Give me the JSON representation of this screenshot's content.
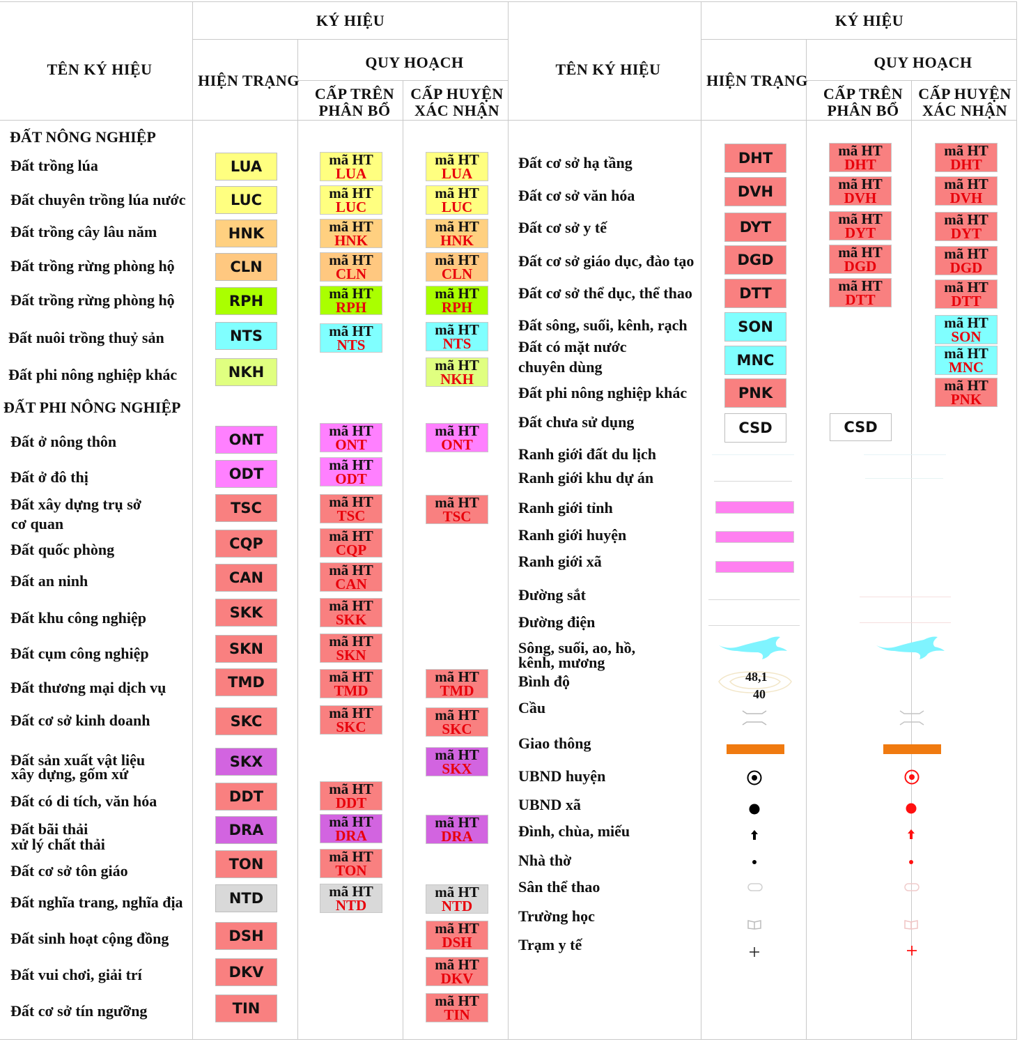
{
  "colors": {
    "LUA": "#ffff80",
    "LUC": "#ffff80",
    "HNK": "#ffd080",
    "CLN": "#ffc880",
    "RPH": "#aaff00",
    "NTS": "#80ffff",
    "NKH": "#e0ff80",
    "ONT": "#ff80ff",
    "ODT": "#ff80ff",
    "TSC": "#f98080",
    "CQP": "#f98080",
    "CAN": "#f98080",
    "SKK": "#f98080",
    "SKN": "#f98080",
    "TMD": "#f98080",
    "SKC": "#f98080",
    "SKX": "#d264e0",
    "DDT": "#f98080",
    "DRA": "#d264e0",
    "TON": "#f98080",
    "NTD": "#d9d9d9",
    "DSH": "#f98080",
    "DKV": "#f98080",
    "TIN": "#f98080",
    "DHT": "#f98080",
    "DVH": "#f98080",
    "DYT": "#f98080",
    "DGD": "#f98080",
    "DTT": "#f98080",
    "SON": "#80ffff",
    "MNC": "#80ffff",
    "PNK": "#f98080",
    "CSD": "#ffffff",
    "pink_bar": "#ff80f0",
    "river": "#7ff4ff",
    "road": "#f07a10",
    "red_symbol": "#ff1010"
  },
  "header": {
    "ten_ky_hieu": "TÊN KÝ HIỆU",
    "ky_hieu": "KÝ HIỆU",
    "hien_trang": "HIỆN TRẠNG",
    "quy_hoach": "QUY HOẠCH",
    "cap_tren_1": "CẤP TRÊN",
    "cap_tren_2": "PHÂN BỔ",
    "cap_huyen_1": "CẤP HUYỆN",
    "cap_huyen_2": "XÁC NHẬN"
  },
  "qbox_prefix": "mã HT",
  "left": {
    "section_nn": "ĐẤT NÔNG NGHIỆP",
    "section_pnn": "ĐẤT PHI NÔNG NGHIỆP",
    "rows": [
      {
        "l1": "Đất trồng lúa",
        "l2": "",
        "code": "LUA"
      },
      {
        "l1": "Đất chuyên trồng lúa nước",
        "l2": "",
        "code": "LUC"
      },
      {
        "l1": "Đất trồng cây lâu năm",
        "l2": "",
        "code": "HNK"
      },
      {
        "l1": "Đất trồng rừng phòng hộ",
        "l2": "",
        "code": "CLN"
      },
      {
        "l1": "Đất trồng rừng phòng hộ",
        "l2": "",
        "code": "RPH"
      },
      {
        "l1": "Đất nuôi trồng thuỷ sản",
        "l2": "",
        "code": "NTS"
      },
      {
        "l1": "Đất phi nông nghiệp khác",
        "l2": "",
        "code": "NKH"
      },
      {
        "l1": "Đất ở nông thôn",
        "l2": "",
        "code": "ONT"
      },
      {
        "l1": "Đất ở đô thị",
        "l2": "",
        "code": "ODT"
      },
      {
        "l1": "Đất xây dựng trụ sở",
        "l2": "cơ quan",
        "code": "TSC"
      },
      {
        "l1": "Đất quốc phòng",
        "l2": "",
        "code": "CQP"
      },
      {
        "l1": "Đất an ninh",
        "l2": "",
        "code": "CAN"
      },
      {
        "l1": "Đất khu công nghiệp",
        "l2": "",
        "code": "SKK"
      },
      {
        "l1": "Đất cụm công nghiệp",
        "l2": "",
        "code": "SKN"
      },
      {
        "l1": "Đất thương mại dịch vụ",
        "l2": "",
        "code": "TMD"
      },
      {
        "l1": "Đất cơ sở kinh doanh",
        "l2": "",
        "code": "SKC"
      },
      {
        "l1": "Đất sản xuất vật liệu",
        "l2": "xây dựng, gốm xứ",
        "code": "SKX"
      },
      {
        "l1": "Đất có di tích, văn hóa",
        "l2": "",
        "code": "DDT"
      },
      {
        "l1": "Đất bãi thải",
        "l2": "xử lý chất thải",
        "code": "DRA"
      },
      {
        "l1": "Đất cơ sở tôn giáo",
        "l2": "",
        "code": "TON"
      },
      {
        "l1": "Đất nghĩa trang, nghĩa địa",
        "l2": "",
        "code": "NTD"
      },
      {
        "l1": "Đất sinh hoạt cộng đồng",
        "l2": "",
        "code": "DSH"
      },
      {
        "l1": "Đất vui chơi, giải trí",
        "l2": "",
        "code": "DKV"
      },
      {
        "l1": "Đất cơ sở tín ngưỡng",
        "l2": "",
        "code": "TIN"
      }
    ]
  },
  "right": {
    "rows": [
      {
        "l1": "Đất cơ sở hạ tầng",
        "l2": "",
        "code": "DHT"
      },
      {
        "l1": "Đất cơ sở văn hóa",
        "l2": "",
        "code": "DVH"
      },
      {
        "l1": "Đất cơ sở y tế",
        "l2": "",
        "code": "DYT"
      },
      {
        "l1": "Đất cơ sở giáo dục, đào tạo",
        "l2": "",
        "code": "DGD"
      },
      {
        "l1": "Đất cơ sở thể dục, thể thao",
        "l2": "",
        "code": "DTT"
      },
      {
        "l1": "Đất sông, suối, kênh, rạch",
        "l2": "",
        "code": "SON"
      },
      {
        "l1": "Đất có mặt nước",
        "l2": "chuyên dùng",
        "code": "MNC"
      },
      {
        "l1": "Đất phi nông nghiệp khác",
        "l2": "",
        "code": "PNK"
      },
      {
        "l1": "Đất chưa sử dụng",
        "l2": "",
        "code": "CSD"
      }
    ],
    "lines": [
      "Ranh giới đất du lịch",
      "Ranh giới khu dự án",
      "Ranh giới tỉnh",
      "Ranh giới huyện",
      "Ranh giới xã",
      "Đường sắt",
      "Đường điện"
    ],
    "river_label_1": "Sông, suối, ao, hồ,",
    "river_label_2": "kênh, mương",
    "binh_do": "Bình độ",
    "binh_do_val_1": "48,1",
    "binh_do_val_2": "40",
    "symbols": [
      "Cầu",
      "Giao thông",
      "UBND huyện",
      "UBND xã",
      "Đình, chùa, miếu",
      "Nhà thờ",
      "Sân thể thao",
      "Trường học",
      "Trạm y tế"
    ]
  }
}
